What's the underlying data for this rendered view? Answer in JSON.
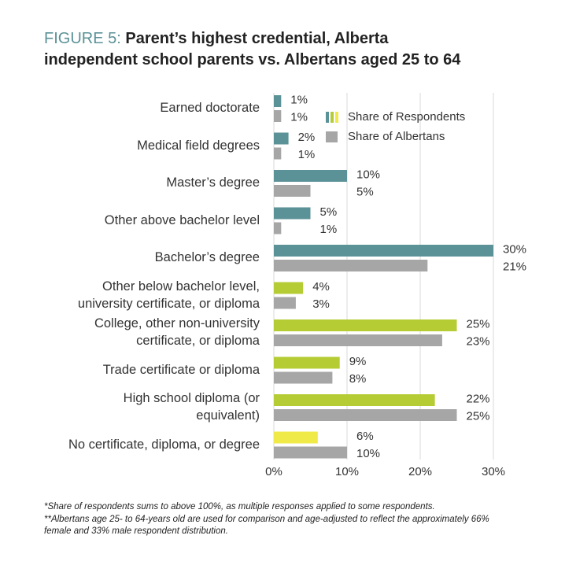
{
  "chart_data": {
    "type": "bar",
    "orientation": "horizontal",
    "figure_label": "FIGURE 5:",
    "title": "Parent’s highest credential, Alberta\nindependent school parents vs. Albertans aged 25 to 64",
    "categories": [
      "Earned doctorate",
      "Medical field degrees",
      "Master’s degree",
      "Other above bachelor level",
      "Bachelor’s degree",
      "Other below bachelor level,\nuniversity certificate, or diploma",
      "College, other non-university\ncertificate, or diploma",
      "Trade certificate or diploma",
      "High school diploma (or\nequivalent)",
      "No certificate, diploma, or degree"
    ],
    "series": [
      {
        "name": "Share of Respondents",
        "colors": [
          "#5b9297",
          "#5b9297",
          "#5b9297",
          "#5b9297",
          "#5b9297",
          "#b5cc34",
          "#b5cc34",
          "#b5cc34",
          "#b5cc34",
          "#f0ea48"
        ],
        "values": [
          1,
          2,
          10,
          5,
          30,
          4,
          25,
          9,
          22,
          6
        ],
        "value_labels": [
          "1%",
          "2%",
          "10%",
          "5%",
          "30%",
          "4%",
          "25%",
          "9%",
          "22%",
          "6%"
        ]
      },
      {
        "name": "Share of Albertans",
        "color": "#a6a6a6",
        "values": [
          1,
          1,
          5,
          1,
          21,
          3,
          23,
          8,
          25,
          10
        ],
        "value_labels": [
          "1%",
          "1%",
          "5%",
          "1%",
          "21%",
          "3%",
          "23%",
          "8%",
          "25%",
          "10%"
        ]
      }
    ],
    "xlim": [
      0,
      30
    ],
    "xticks": [
      {
        "value": 0,
        "label": "0%"
      },
      {
        "value": 10,
        "label": "10%"
      },
      {
        "value": 20,
        "label": "20%"
      },
      {
        "value": 30,
        "label": "30%"
      }
    ],
    "grid": true,
    "footnotes": [
      "*Share of respondents sums to above 100%, as multiple responses applied to some respondents.",
      "**Albertans age 25- to 64-years old are used for comparison and age-adjusted to reflect the approximately 66% female and 33% male respondent distribution."
    ]
  }
}
